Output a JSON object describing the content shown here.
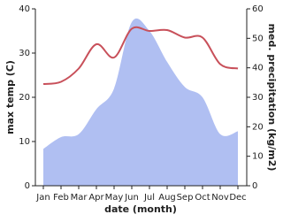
{
  "chart_data": {
    "type": "line-area",
    "categories": [
      "Jan",
      "Feb",
      "Mar",
      "Apr",
      "May",
      "Jun",
      "Jul",
      "Aug",
      "Sep",
      "Oct",
      "Nov",
      "Dec"
    ],
    "xlabel": "date (month)",
    "ylabel": "max temp (C)",
    "y2label": "med. precipitation (kg/m2)",
    "ylim": [
      0,
      40
    ],
    "yticks": [
      0,
      10,
      20,
      30,
      40
    ],
    "y2lim": [
      0,
      60
    ],
    "y2ticks": [
      0,
      10,
      20,
      30,
      40,
      50,
      60
    ],
    "series": [
      {
        "name": "max temp",
        "color": "#c8505a",
        "kind": "line",
        "values": [
          23,
          23.5,
          26.5,
          32,
          29,
          35.5,
          35,
          35.2,
          33.5,
          33.5,
          27.5,
          26.5
        ]
      },
      {
        "name": "precipitation",
        "color": "#b0bff2",
        "kind": "area",
        "axis": "y2",
        "values": [
          12.5,
          16.5,
          17.5,
          26,
          33,
          55.5,
          52.5,
          42,
          33.5,
          30,
          17.5,
          18.5
        ]
      }
    ]
  }
}
